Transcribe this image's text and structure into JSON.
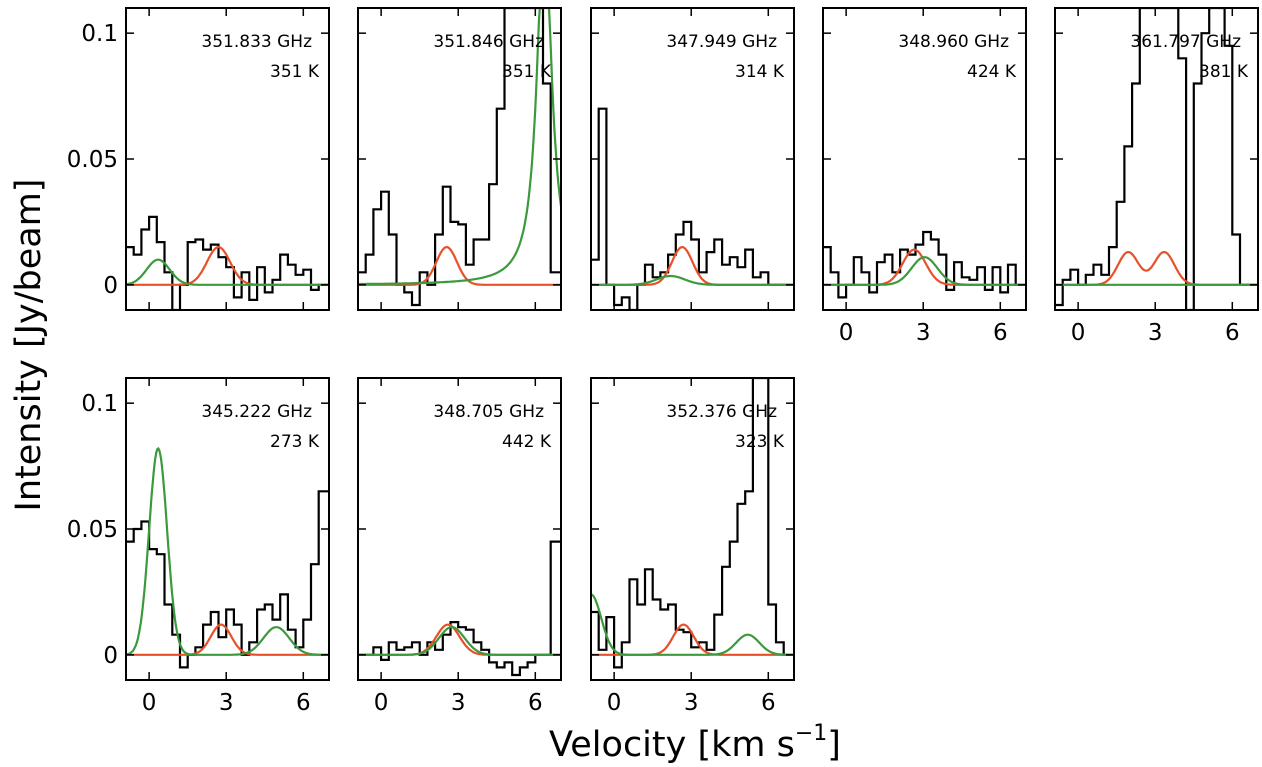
{
  "figure": {
    "ylabel": "Intensity [Jy/beam]",
    "xlabel_main": "Velocity [km s",
    "xlabel_sup": "−1",
    "xlabel_end": "]"
  },
  "colors": {
    "observed": "#000000",
    "model_a": "#e8502a",
    "model_b": "#3a9a3c"
  },
  "chart_data": [
    {
      "type": "line",
      "frequency": "351.833 GHz",
      "temperature": "351 K",
      "xlim": [
        -0.9,
        7.0
      ],
      "ylim": [
        -0.01,
        0.11
      ],
      "xticks": [
        0,
        3,
        6
      ],
      "xtick_labels": [
        "0",
        "3",
        "6"
      ],
      "show_xticklabels": false,
      "yticks": [
        0,
        0.05,
        0.1
      ],
      "ytick_labels": [
        "0",
        "0.05",
        "0.1"
      ],
      "show_yticklabels": true,
      "series": [
        {
          "style": "step",
          "color": "#000000",
          "x": [
            -0.9,
            -0.6,
            -0.3,
            0.0,
            0.3,
            0.6,
            0.9,
            1.2,
            1.5,
            1.8,
            2.1,
            2.4,
            2.7,
            3.0,
            3.3,
            3.6,
            3.9,
            4.2,
            4.5,
            4.8,
            5.1,
            5.4,
            5.7,
            6.0,
            6.3,
            6.6,
            7.0
          ],
          "y": [
            0.015,
            0.012,
            0.022,
            0.027,
            0.017,
            0.005,
            -0.012,
            0.0,
            0.017,
            0.018,
            0.014,
            0.016,
            0.011,
            0.007,
            -0.005,
            0.005,
            -0.006,
            0.007,
            -0.003,
            0.002,
            0.012,
            0.008,
            0.004,
            0.006,
            -0.002,
            0.0,
            0.0
          ]
        },
        {
          "style": "gaussian",
          "color": "#e8502a",
          "components": [
            {
              "amp": 0.015,
              "center": 2.7,
              "width": 0.45
            }
          ]
        },
        {
          "style": "gaussian",
          "color": "#3a9a3c",
          "components": [
            {
              "amp": 0.01,
              "center": 0.35,
              "width": 0.45
            }
          ]
        }
      ]
    },
    {
      "type": "line",
      "frequency": "351.846 GHz",
      "temperature": "351 K",
      "xlim": [
        -0.9,
        7.0
      ],
      "ylim": [
        -0.01,
        0.11
      ],
      "xticks": [
        0,
        3,
        6
      ],
      "xtick_labels": [
        "0",
        "3",
        "6"
      ],
      "show_xticklabels": false,
      "yticks": [
        0,
        0.05,
        0.1
      ],
      "ytick_labels": [
        "0",
        "0.05",
        "0.1"
      ],
      "show_yticklabels": false,
      "series": [
        {
          "style": "step",
          "color": "#000000",
          "x": [
            -0.9,
            -0.6,
            -0.3,
            0.0,
            0.3,
            0.6,
            0.9,
            1.2,
            1.5,
            1.8,
            2.1,
            2.4,
            2.7,
            3.0,
            3.3,
            3.6,
            3.9,
            4.2,
            4.5,
            4.8,
            5.1,
            5.4,
            5.7,
            6.0,
            6.3,
            6.6,
            7.0
          ],
          "y": [
            0.005,
            0.012,
            0.03,
            0.037,
            0.02,
            0.0,
            -0.003,
            -0.008,
            0.005,
            0.0,
            0.02,
            0.039,
            0.025,
            0.024,
            0.008,
            0.018,
            0.018,
            0.04,
            0.07,
            0.11,
            0.11,
            0.11,
            0.11,
            0.11,
            0.08,
            0.005,
            0.005
          ]
        },
        {
          "style": "gaussian",
          "color": "#e8502a",
          "components": [
            {
              "amp": 0.015,
              "center": 2.55,
              "width": 0.4
            }
          ]
        },
        {
          "style": "lorentz",
          "color": "#3a9a3c",
          "amp": 0.145,
          "center": 6.35,
          "gamma": 0.34
        }
      ]
    },
    {
      "type": "line",
      "frequency": "347.949 GHz",
      "temperature": "314 K",
      "xlim": [
        -0.9,
        7.0
      ],
      "ylim": [
        -0.01,
        0.11
      ],
      "xticks": [
        0,
        3,
        6
      ],
      "xtick_labels": [
        "0",
        "3",
        "6"
      ],
      "show_xticklabels": false,
      "yticks": [
        0,
        0.05,
        0.1
      ],
      "ytick_labels": [
        "0",
        "0.05",
        "0.1"
      ],
      "show_yticklabels": false,
      "series": [
        {
          "style": "step",
          "color": "#000000",
          "x": [
            -0.9,
            -0.6,
            -0.3,
            0.0,
            0.3,
            0.6,
            0.9,
            1.2,
            1.5,
            1.8,
            2.1,
            2.4,
            2.7,
            3.0,
            3.3,
            3.6,
            3.9,
            4.2,
            4.5,
            4.8,
            5.1,
            5.4,
            5.7,
            6.0,
            6.3,
            6.6,
            7.0
          ],
          "y": [
            0.01,
            0.07,
            0.0,
            -0.008,
            -0.005,
            -0.01,
            0.0,
            0.008,
            0.003,
            0.005,
            0.012,
            0.02,
            0.025,
            0.018,
            0.005,
            0.013,
            0.018,
            0.008,
            0.011,
            0.007,
            0.014,
            0.003,
            0.005,
            0.0,
            0.0,
            0.0,
            0.0
          ]
        },
        {
          "style": "gaussian",
          "color": "#e8502a",
          "components": [
            {
              "amp": 0.015,
              "center": 2.65,
              "width": 0.4
            }
          ]
        },
        {
          "style": "gaussian",
          "color": "#3a9a3c",
          "components": [
            {
              "amp": 0.0035,
              "center": 2.2,
              "width": 0.55
            }
          ]
        }
      ]
    },
    {
      "type": "line",
      "frequency": "348.960 GHz",
      "temperature": "424 K",
      "xlim": [
        -0.9,
        7.0
      ],
      "ylim": [
        -0.01,
        0.11
      ],
      "xticks": [
        0,
        3,
        6
      ],
      "xtick_labels": [
        "0",
        "3",
        "6"
      ],
      "show_xticklabels": true,
      "yticks": [
        0,
        0.05,
        0.1
      ],
      "ytick_labels": [
        "0",
        "0.05",
        "0.1"
      ],
      "show_yticklabels": false,
      "series": [
        {
          "style": "step",
          "color": "#000000",
          "x": [
            -0.9,
            -0.6,
            -0.3,
            0.0,
            0.3,
            0.6,
            0.9,
            1.2,
            1.5,
            1.8,
            2.1,
            2.4,
            2.7,
            3.0,
            3.3,
            3.6,
            3.9,
            4.2,
            4.5,
            4.8,
            5.1,
            5.4,
            5.7,
            6.0,
            6.3,
            6.6,
            7.0
          ],
          "y": [
            0.015,
            0.005,
            -0.005,
            0.0,
            0.011,
            0.005,
            -0.003,
            0.009,
            0.012,
            0.005,
            0.014,
            0.012,
            0.016,
            0.021,
            0.018,
            0.012,
            -0.002,
            0.009,
            0.003,
            0.002,
            0.007,
            -0.002,
            0.007,
            -0.003,
            0.008,
            0.0,
            0.0
          ]
        },
        {
          "style": "gaussian",
          "color": "#e8502a",
          "components": [
            {
              "amp": 0.014,
              "center": 2.65,
              "width": 0.45
            }
          ]
        },
        {
          "style": "gaussian",
          "color": "#3a9a3c",
          "components": [
            {
              "amp": 0.011,
              "center": 3.05,
              "width": 0.5
            }
          ]
        }
      ]
    },
    {
      "type": "line",
      "frequency": "361.797 GHz",
      "temperature": "381 K",
      "xlim": [
        -0.9,
        7.0
      ],
      "ylim": [
        -0.01,
        0.11
      ],
      "xticks": [
        0,
        3,
        6
      ],
      "xtick_labels": [
        "0",
        "3",
        "6"
      ],
      "show_xticklabels": true,
      "yticks": [
        0,
        0.05,
        0.1
      ],
      "ytick_labels": [
        "0",
        "0.05",
        "0.1"
      ],
      "show_yticklabels": false,
      "series": [
        {
          "style": "step",
          "color": "#000000",
          "x": [
            -0.9,
            -0.6,
            -0.3,
            0.0,
            0.3,
            0.6,
            0.9,
            1.2,
            1.5,
            1.8,
            2.1,
            2.4,
            2.7,
            3.0,
            3.3,
            3.6,
            3.9,
            4.2,
            4.5,
            4.8,
            5.1,
            5.4,
            5.7,
            6.0,
            6.3,
            6.6,
            7.0
          ],
          "y": [
            -0.008,
            0.002,
            0.006,
            0.0,
            0.004,
            0.008,
            0.004,
            0.015,
            0.033,
            0.055,
            0.08,
            0.11,
            0.11,
            0.11,
            0.11,
            0.11,
            0.09,
            -0.01,
            0.08,
            0.1,
            0.11,
            0.11,
            0.095,
            0.02,
            0.0,
            0.0,
            0.0
          ]
        },
        {
          "style": "gaussian",
          "color": "#e8502a",
          "components": [
            {
              "amp": 0.013,
              "center": 1.95,
              "width": 0.4
            },
            {
              "amp": 0.013,
              "center": 3.35,
              "width": 0.4
            }
          ]
        },
        {
          "style": "flat",
          "color": "#3a9a3c",
          "value": 0
        }
      ]
    },
    {
      "type": "line",
      "frequency": "345.222 GHz",
      "temperature": "273 K",
      "xlim": [
        -0.9,
        7.0
      ],
      "ylim": [
        -0.01,
        0.11
      ],
      "xticks": [
        0,
        3,
        6
      ],
      "xtick_labels": [
        "0",
        "3",
        "6"
      ],
      "show_xticklabels": true,
      "yticks": [
        0,
        0.05,
        0.1
      ],
      "ytick_labels": [
        "0",
        "0.05",
        "0.1"
      ],
      "show_yticklabels": true,
      "series": [
        {
          "style": "step",
          "color": "#000000",
          "x": [
            -0.9,
            -0.6,
            -0.3,
            0.0,
            0.3,
            0.6,
            0.9,
            1.2,
            1.5,
            1.8,
            2.1,
            2.4,
            2.7,
            3.0,
            3.3,
            3.6,
            3.9,
            4.2,
            4.5,
            4.8,
            5.1,
            5.4,
            5.7,
            6.0,
            6.3,
            6.6,
            7.0
          ],
          "y": [
            0.045,
            0.05,
            0.053,
            0.042,
            0.04,
            0.02,
            0.008,
            -0.005,
            0.0,
            0.003,
            0.012,
            0.017,
            0.007,
            0.018,
            0.012,
            0.0,
            0.005,
            0.018,
            0.02,
            0.014,
            0.024,
            0.01,
            0.003,
            0.014,
            0.036,
            0.065,
            0.065
          ]
        },
        {
          "style": "gaussian",
          "color": "#e8502a",
          "components": [
            {
              "amp": 0.012,
              "center": 2.8,
              "width": 0.4
            }
          ]
        },
        {
          "style": "gaussian",
          "color": "#3a9a3c",
          "components": [
            {
              "amp": 0.082,
              "center": 0.35,
              "width": 0.35
            },
            {
              "amp": 0.011,
              "center": 4.95,
              "width": 0.5
            }
          ]
        }
      ]
    },
    {
      "type": "line",
      "frequency": "348.705 GHz",
      "temperature": "442 K",
      "xlim": [
        -0.9,
        7.0
      ],
      "ylim": [
        -0.01,
        0.11
      ],
      "xticks": [
        0,
        3,
        6
      ],
      "xtick_labels": [
        "0",
        "3",
        "6"
      ],
      "show_xticklabels": true,
      "yticks": [
        0,
        0.05,
        0.1
      ],
      "ytick_labels": [
        "0",
        "0.05",
        "0.1"
      ],
      "show_yticklabels": false,
      "series": [
        {
          "style": "step",
          "color": "#000000",
          "x": [
            -0.9,
            -0.6,
            -0.3,
            0.0,
            0.3,
            0.6,
            0.9,
            1.2,
            1.5,
            1.8,
            2.1,
            2.4,
            2.7,
            3.0,
            3.3,
            3.6,
            3.9,
            4.2,
            4.5,
            4.8,
            5.1,
            5.4,
            5.7,
            6.0,
            6.3,
            6.6,
            7.0
          ],
          "y": [
            0.0,
            0.0,
            0.003,
            -0.002,
            0.005,
            0.002,
            0.003,
            0.005,
            0.0,
            0.005,
            0.002,
            0.008,
            0.013,
            0.011,
            0.01,
            0.005,
            0.002,
            -0.003,
            -0.005,
            -0.003,
            -0.008,
            -0.005,
            -0.003,
            0.0,
            0.0,
            0.045,
            0.095
          ]
        },
        {
          "style": "gaussian",
          "color": "#e8502a",
          "components": [
            {
              "amp": 0.012,
              "center": 2.6,
              "width": 0.45
            }
          ]
        },
        {
          "style": "gaussian",
          "color": "#3a9a3c",
          "components": [
            {
              "amp": 0.011,
              "center": 2.75,
              "width": 0.5
            }
          ]
        }
      ]
    },
    {
      "type": "line",
      "frequency": "352.376 GHz",
      "temperature": "323 K",
      "xlim": [
        -0.9,
        7.0
      ],
      "ylim": [
        -0.01,
        0.11
      ],
      "xticks": [
        0,
        3,
        6
      ],
      "xtick_labels": [
        "0",
        "3",
        "6"
      ],
      "show_xticklabels": true,
      "yticks": [
        0,
        0.05,
        0.1
      ],
      "ytick_labels": [
        "0",
        "0.05",
        "0.1"
      ],
      "show_yticklabels": false,
      "series": [
        {
          "style": "step",
          "color": "#000000",
          "x": [
            -0.9,
            -0.6,
            -0.3,
            0.0,
            0.3,
            0.6,
            0.9,
            1.2,
            1.5,
            1.8,
            2.1,
            2.4,
            2.7,
            3.0,
            3.3,
            3.6,
            3.9,
            4.2,
            4.5,
            4.8,
            5.1,
            5.4,
            5.7,
            6.0,
            6.3,
            6.6,
            7.0
          ],
          "y": [
            0.017,
            0.002,
            0.015,
            -0.005,
            0.005,
            0.03,
            0.02,
            0.034,
            0.022,
            0.018,
            0.02,
            0.01,
            0.009,
            0.003,
            0.005,
            0.002,
            0.016,
            0.035,
            0.045,
            0.06,
            0.065,
            0.11,
            0.11,
            0.02,
            0.005,
            0.0,
            0.0
          ]
        },
        {
          "style": "gaussian",
          "color": "#e8502a",
          "components": [
            {
              "amp": 0.012,
              "center": 2.7,
              "width": 0.4
            }
          ]
        },
        {
          "style": "gaussian",
          "color": "#3a9a3c",
          "components": [
            {
              "amp": 0.024,
              "center": -0.9,
              "width": 0.4
            },
            {
              "amp": 0.008,
              "center": 5.2,
              "width": 0.45
            }
          ]
        }
      ]
    }
  ]
}
